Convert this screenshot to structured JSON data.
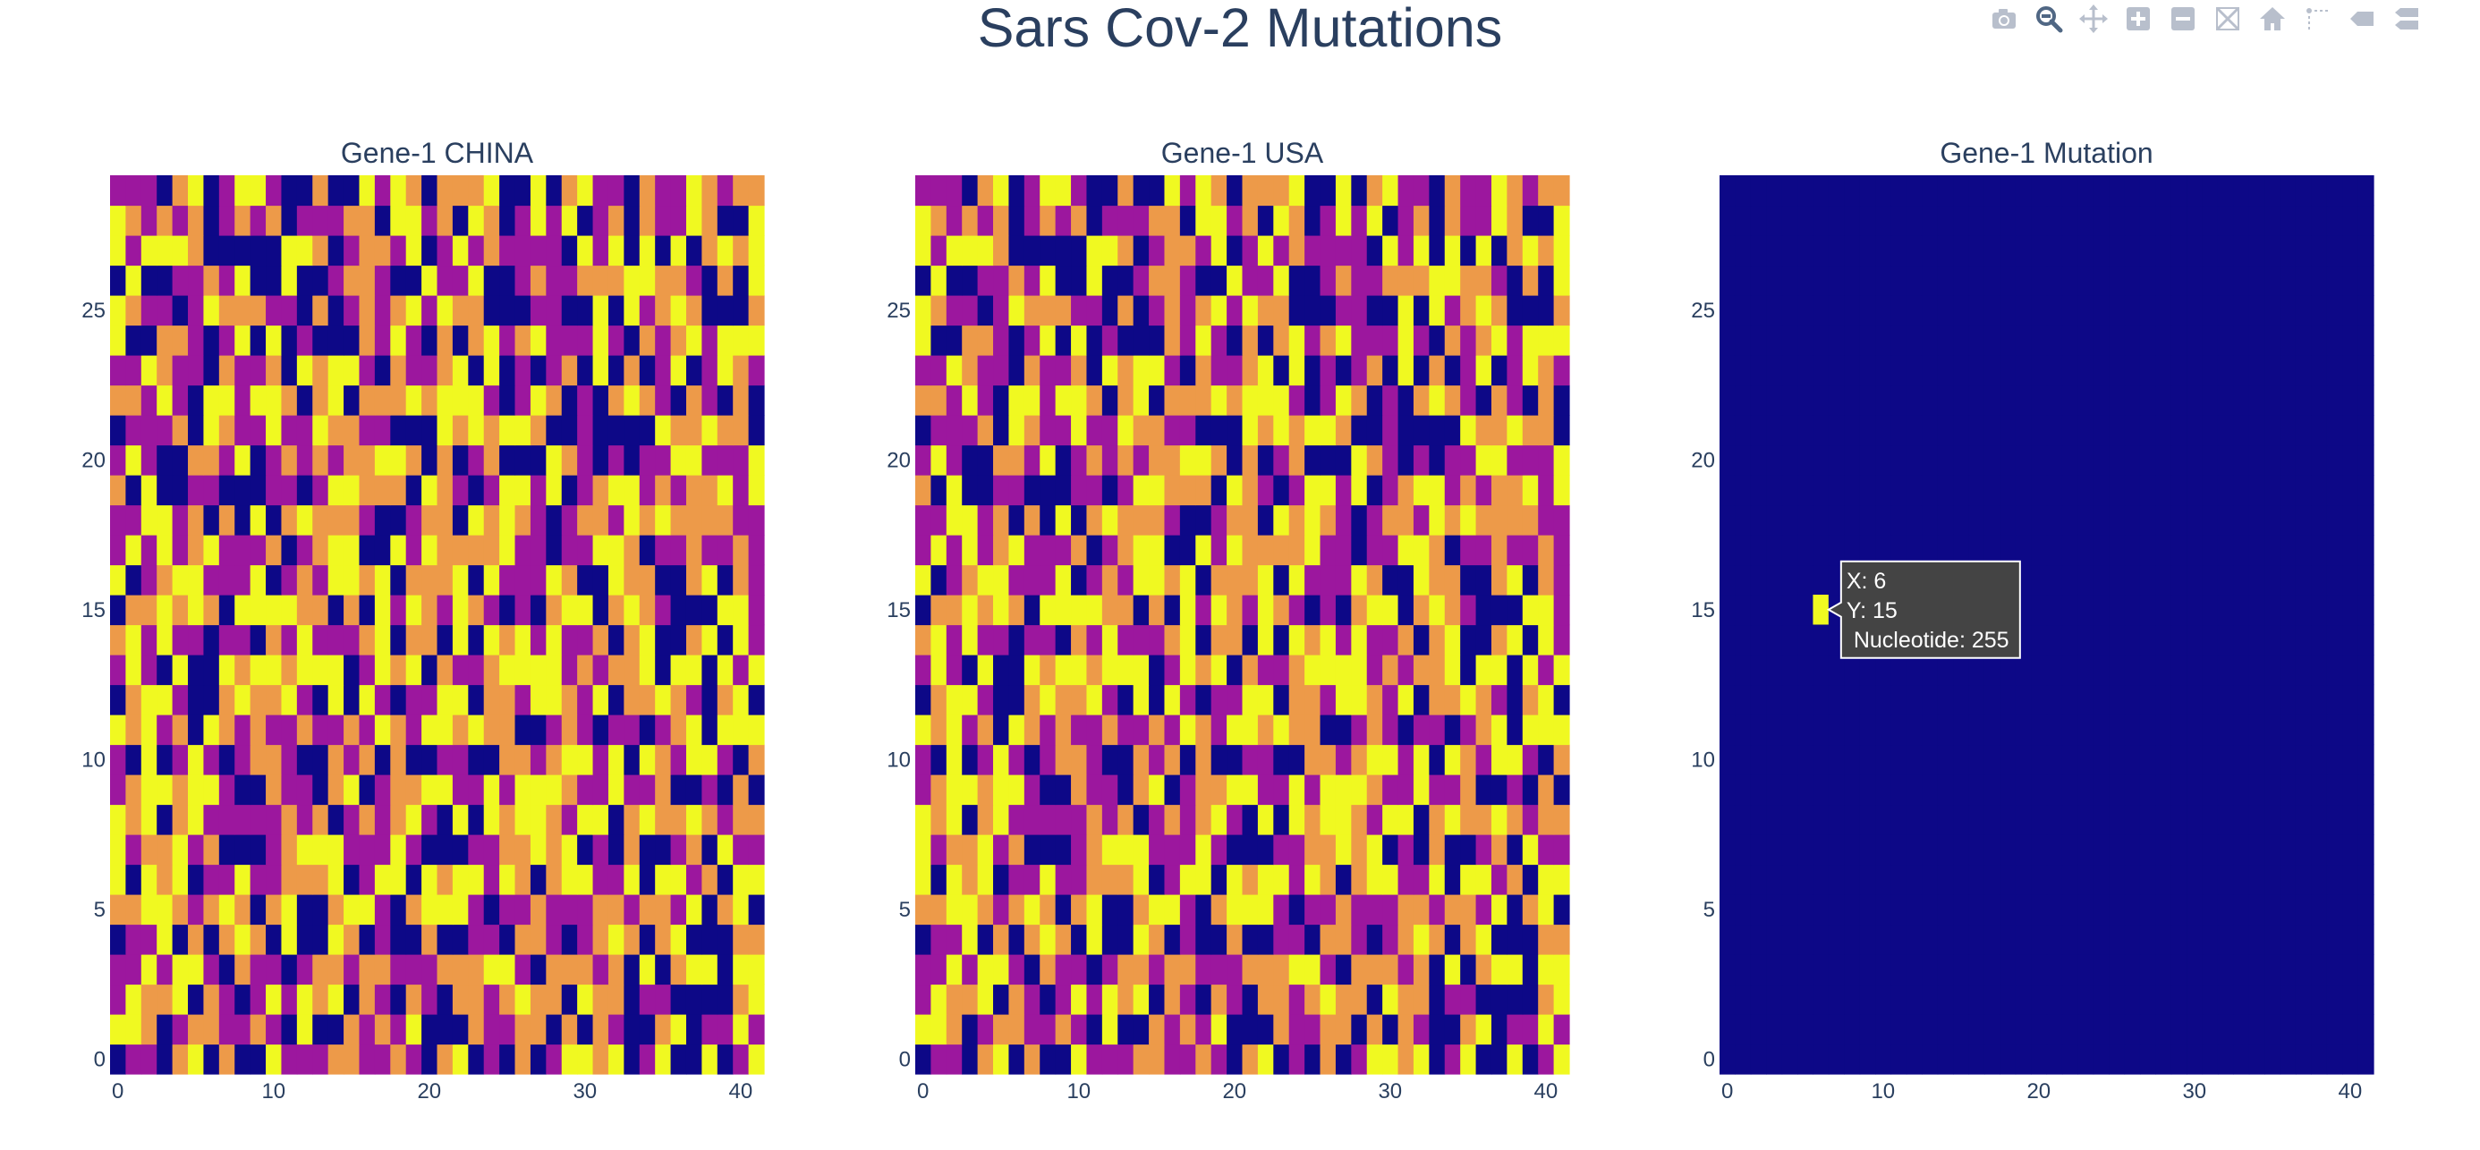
{
  "title": "Sars Cov-2 Mutations",
  "modebar": {
    "buttons": [
      {
        "name": "camera-icon"
      },
      {
        "name": "zoom-icon"
      },
      {
        "name": "pan-icon"
      },
      {
        "name": "zoom-in-icon"
      },
      {
        "name": "zoom-out-icon"
      },
      {
        "name": "autoscale-icon"
      },
      {
        "name": "reset-axes-icon"
      },
      {
        "name": "spike-lines-icon"
      },
      {
        "name": "hover-closest-icon"
      },
      {
        "name": "hover-compare-icon"
      }
    ]
  },
  "colors": {
    "colorscale": [
      "#0d0887",
      "#9c179e",
      "#ed9a49",
      "#f0f921"
    ],
    "background": "#ffffff",
    "text": "#2a3f5f",
    "hover_bg": "#444444",
    "icon": "#b8bfcc",
    "icon_active": "#506784"
  },
  "chart_data": [
    {
      "type": "heatmap",
      "title": "Gene-1 CHINA",
      "x_range": [
        0,
        41
      ],
      "y_range": [
        0,
        29
      ],
      "x_ticks": [
        "0",
        "10",
        "20",
        "30",
        "40"
      ],
      "y_ticks": [
        "0",
        "5",
        "10",
        "15",
        "20",
        "25"
      ],
      "values_note": "42x30 grid of nucleotide codes (4 levels) — procedurally approximated",
      "seed": 11
    },
    {
      "type": "heatmap",
      "title": "Gene-1 USA",
      "x_range": [
        0,
        41
      ],
      "y_range": [
        0,
        29
      ],
      "x_ticks": [
        "0",
        "10",
        "20",
        "30",
        "40"
      ],
      "y_ticks": [
        "0",
        "5",
        "10",
        "15",
        "20",
        "25"
      ],
      "values_note": "42x30 grid; identical to CHINA except cell (6,15)",
      "seed": 11
    },
    {
      "type": "heatmap",
      "title": "Gene-1 Mutation",
      "x_range": [
        0,
        41
      ],
      "y_range": [
        0,
        29
      ],
      "x_ticks": [
        "0",
        "10",
        "20",
        "30",
        "40"
      ],
      "y_ticks": [
        "0",
        "5",
        "10",
        "15",
        "20",
        "25"
      ],
      "background_value": 0,
      "mutations": [
        {
          "x": 6,
          "y": 15,
          "value": 255
        }
      ]
    }
  ],
  "hover": {
    "line1": "X: 6",
    "line2": "Y: 15",
    "line3": "Nucleotide: 255"
  }
}
